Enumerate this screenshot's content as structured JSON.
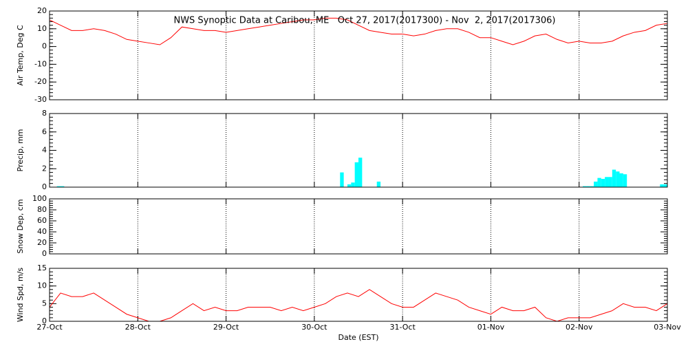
{
  "chart_data": [
    {
      "type": "line",
      "title": "NWS Synoptic Data at Caribou, ME   Oct 27, 2017(2017300) - Nov  2, 2017(2017306)",
      "ylabel": "Air Temp, Deg C",
      "color": "#ff0000",
      "grid": true,
      "xlim": [
        0,
        168
      ],
      "ylim": [
        -30,
        20
      ],
      "yticks": [
        -30,
        -20,
        -10,
        0,
        10,
        20
      ],
      "x": [
        0,
        3,
        6,
        9,
        12,
        15,
        18,
        21,
        24,
        27,
        30,
        33,
        36,
        39,
        42,
        45,
        48,
        51,
        54,
        57,
        60,
        63,
        66,
        69,
        72,
        75,
        78,
        81,
        84,
        87,
        90,
        93,
        96,
        99,
        102,
        105,
        108,
        111,
        114,
        117,
        120,
        123,
        126,
        129,
        132,
        135,
        138,
        141,
        144,
        147,
        150,
        153,
        156,
        159,
        162,
        165,
        168
      ],
      "values": [
        15,
        12,
        9,
        9,
        10,
        9,
        7,
        4,
        3,
        2,
        1,
        5,
        11,
        10,
        9,
        9,
        8,
        9,
        10,
        11,
        12,
        13,
        14,
        15,
        15,
        16,
        16,
        15,
        12,
        9,
        8,
        7,
        7,
        6,
        7,
        9,
        10,
        10,
        8,
        5,
        5,
        3,
        1,
        3,
        6,
        7,
        4,
        2,
        3,
        2,
        2,
        3,
        6,
        8,
        9,
        12,
        13
      ]
    },
    {
      "type": "bar",
      "ylabel": "Precip, mm",
      "color": "#00ffff",
      "grid": true,
      "xlim": [
        0,
        168
      ],
      "ylim": [
        0,
        8
      ],
      "yticks": [
        0,
        2,
        4,
        6,
        8
      ],
      "x": [
        2,
        3,
        79,
        81,
        82,
        83,
        84,
        89,
        145,
        146,
        147,
        148,
        149,
        150,
        151,
        152,
        153,
        154,
        155,
        156,
        166,
        167
      ],
      "values": [
        0.1,
        0.1,
        1.6,
        0.3,
        0.5,
        2.7,
        3.2,
        0.6,
        0.1,
        0.1,
        0.1,
        0.6,
        1.0,
        0.9,
        1.1,
        1.1,
        1.9,
        1.7,
        1.5,
        1.4,
        0.3,
        0.3
      ]
    },
    {
      "type": "line",
      "ylabel": "Snow Dep, cm",
      "grid": true,
      "xlim": [
        0,
        168
      ],
      "ylim": [
        0,
        100
      ],
      "yticks": [
        0,
        20,
        40,
        60,
        80,
        100
      ]
    },
    {
      "type": "line",
      "ylabel": "Wind Spd, m/s",
      "xlabel": "Date (EST)",
      "color": "#ff0000",
      "grid": true,
      "xlim": [
        0,
        168
      ],
      "ylim": [
        0,
        15
      ],
      "yticks": [
        0,
        5,
        10,
        15
      ],
      "xticks": [
        {
          "value": 0,
          "label": "27-Oct"
        },
        {
          "value": 24,
          "label": "28-Oct"
        },
        {
          "value": 48,
          "label": "29-Oct"
        },
        {
          "value": 72,
          "label": "30-Oct"
        },
        {
          "value": 96,
          "label": "31-Oct"
        },
        {
          "value": 120,
          "label": "01-Nov"
        },
        {
          "value": 144,
          "label": "02-Nov"
        },
        {
          "value": 168,
          "label": "03-Nov"
        }
      ],
      "x": [
        0,
        3,
        6,
        9,
        12,
        15,
        18,
        21,
        24,
        27,
        30,
        33,
        36,
        39,
        42,
        45,
        48,
        51,
        54,
        57,
        60,
        63,
        66,
        69,
        72,
        75,
        78,
        81,
        84,
        87,
        90,
        93,
        96,
        99,
        102,
        105,
        108,
        111,
        114,
        117,
        120,
        123,
        126,
        129,
        132,
        135,
        138,
        141,
        144,
        147,
        150,
        153,
        156,
        159,
        162,
        165,
        168
      ],
      "values": [
        4,
        8,
        7,
        7,
        8,
        6,
        4,
        2,
        1,
        0,
        0,
        1,
        3,
        5,
        3,
        4,
        3,
        3,
        4,
        4,
        4,
        3,
        4,
        3,
        4,
        5,
        7,
        8,
        7,
        9,
        7,
        5,
        4,
        4,
        6,
        8,
        7,
        6,
        4,
        3,
        2,
        4,
        3,
        3,
        4,
        1,
        0,
        1,
        1,
        1,
        2,
        3,
        5,
        4,
        4,
        3,
        5
      ]
    }
  ]
}
